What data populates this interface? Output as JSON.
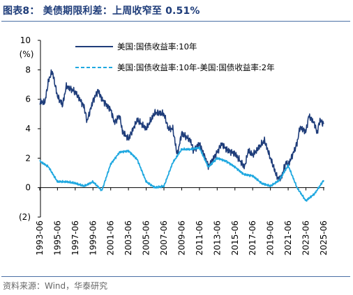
{
  "figure": {
    "title": "图表8：  美债期限利差：上周收窄至 0.51%",
    "source": "资料来源：Wind，华泰研究"
  },
  "colors": {
    "series_10y": "#1f3d7a",
    "series_spread": "#1fa8e0",
    "title": "#1f3d7a",
    "rule": "#4a6fa5"
  },
  "chart_data": {
    "type": "line",
    "unit_label": "(%)",
    "ylim": [
      -2,
      10
    ],
    "y_ticks": [
      -2,
      0,
      2,
      4,
      6,
      8,
      10
    ],
    "y_tick_labels": [
      "(2)",
      "0",
      "2",
      "4",
      "6",
      "8",
      "10"
    ],
    "x_tick_labels": [
      "1993-06",
      "1995-06",
      "1997-06",
      "1999-06",
      "2001-06",
      "2003-06",
      "2005-06",
      "2007-06",
      "2009-06",
      "2011-06",
      "2013-06",
      "2015-06",
      "2017-06",
      "2019-06",
      "2021-06",
      "2023-06",
      "2025-06"
    ],
    "grid": false,
    "legend_position": "top-right",
    "series": [
      {
        "name": "美国:国债收益率:10年",
        "style": "solid",
        "x": [
          "1993-06",
          "1994-01",
          "1994-06",
          "1994-11",
          "1995-06",
          "1996-01",
          "1996-06",
          "1997-06",
          "1998-06",
          "1998-10",
          "1999-06",
          "2000-01",
          "2000-06",
          "2001-06",
          "2001-11",
          "2002-06",
          "2002-10",
          "2003-06",
          "2004-06",
          "2005-06",
          "2006-06",
          "2007-06",
          "2007-12",
          "2008-06",
          "2008-12",
          "2009-06",
          "2010-06",
          "2010-10",
          "2011-06",
          "2012-06",
          "2012-07",
          "2013-06",
          "2013-12",
          "2014-06",
          "2015-06",
          "2016-07",
          "2016-12",
          "2017-06",
          "2018-10",
          "2019-06",
          "2020-03",
          "2020-08",
          "2021-03",
          "2021-06",
          "2022-06",
          "2022-10",
          "2023-06",
          "2023-10",
          "2024-06",
          "2024-09",
          "2025-01",
          "2025-06"
        ],
        "values": [
          5.8,
          5.8,
          7.3,
          7.9,
          6.2,
          5.6,
          6.9,
          6.5,
          5.5,
          4.5,
          5.9,
          6.6,
          6.0,
          5.3,
          4.4,
          4.9,
          3.8,
          3.3,
          4.6,
          4.0,
          5.1,
          5.0,
          4.0,
          4.0,
          2.2,
          3.7,
          3.2,
          2.5,
          3.0,
          1.5,
          1.5,
          2.4,
          3.0,
          2.6,
          2.3,
          1.4,
          2.5,
          2.2,
          3.2,
          2.0,
          0.7,
          0.6,
          1.7,
          1.5,
          3.0,
          4.1,
          3.8,
          4.9,
          4.3,
          3.7,
          4.6,
          4.3
        ]
      },
      {
        "name": "美国:国债收益率:10年-美国:国债收益率:2年",
        "style": "dashed",
        "x": [
          "1993-06",
          "1994-06",
          "1995-06",
          "1996-06",
          "1997-06",
          "1998-06",
          "1999-06",
          "2000-06",
          "2001-06",
          "2002-06",
          "2003-06",
          "2004-06",
          "2005-06",
          "2006-06",
          "2007-06",
          "2008-06",
          "2009-06",
          "2010-06",
          "2011-06",
          "2012-06",
          "2013-06",
          "2014-06",
          "2015-06",
          "2016-06",
          "2017-06",
          "2018-06",
          "2019-06",
          "2020-06",
          "2021-06",
          "2022-06",
          "2023-06",
          "2024-06",
          "2025-06"
        ],
        "values": [
          1.8,
          1.4,
          0.4,
          0.4,
          0.3,
          0.1,
          0.4,
          -0.2,
          1.6,
          2.4,
          2.5,
          1.9,
          0.4,
          0.0,
          0.1,
          1.7,
          2.6,
          2.6,
          2.7,
          1.4,
          2.0,
          1.8,
          1.4,
          0.9,
          0.8,
          0.3,
          0.1,
          0.5,
          1.5,
          0.0,
          -0.9,
          -0.4,
          0.5
        ]
      }
    ]
  }
}
